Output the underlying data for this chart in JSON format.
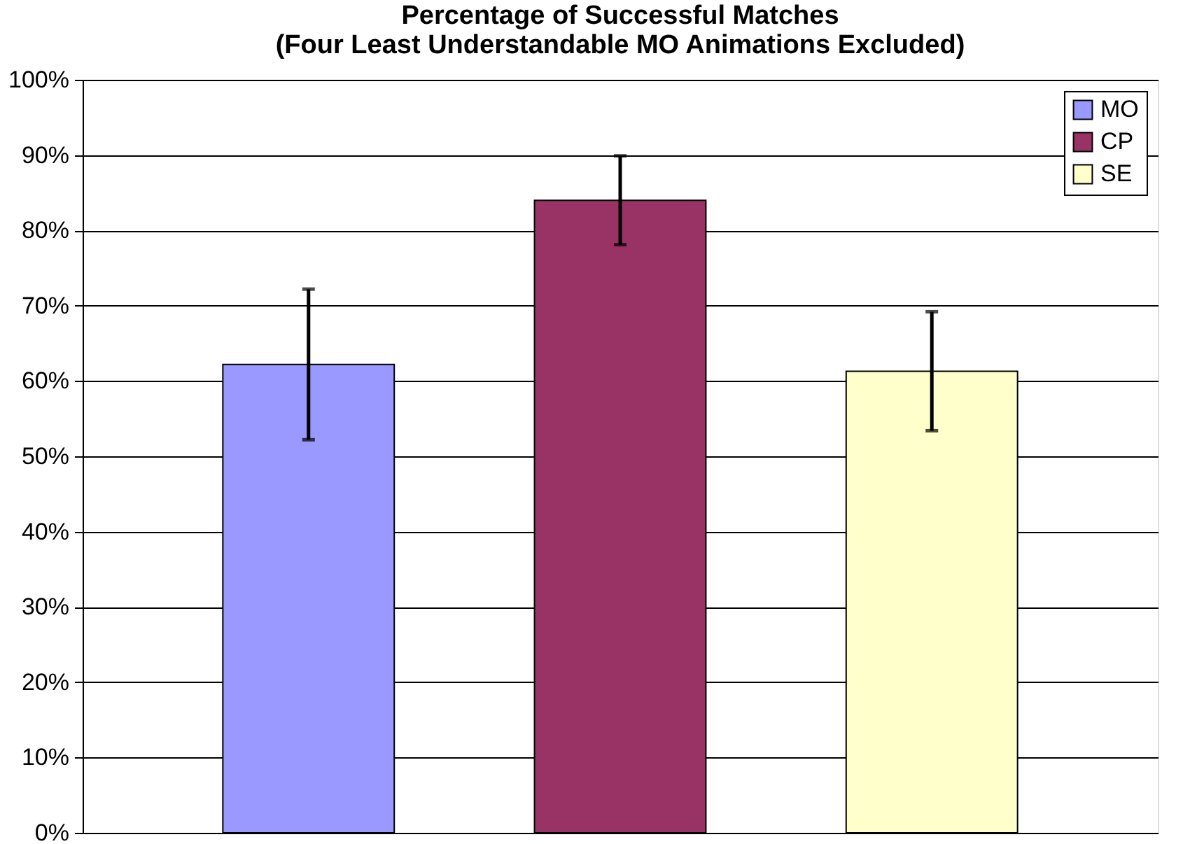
{
  "chart_data": {
    "type": "bar",
    "title": "Percentage of Successful Matches",
    "subtitle": "(Four Least Understandable MO Animations Excluded)",
    "categories": [
      null
    ],
    "series": [
      {
        "name": "MO",
        "color": "#9999ff",
        "values": [
          62.2
        ],
        "errors": [
          10.0
        ]
      },
      {
        "name": "CP",
        "color": "#993366",
        "values": [
          84.0
        ],
        "errors": [
          5.9
        ]
      },
      {
        "name": "SE",
        "color": "#ffffcc",
        "values": [
          61.3
        ],
        "errors": [
          7.9
        ]
      }
    ],
    "ylim": [
      0,
      100
    ],
    "yticks": [
      {
        "value": 0,
        "label": "0%"
      },
      {
        "value": 10,
        "label": "10%"
      },
      {
        "value": 20,
        "label": "20%"
      },
      {
        "value": 30,
        "label": "30%"
      },
      {
        "value": 40,
        "label": "40%"
      },
      {
        "value": 50,
        "label": "50%"
      },
      {
        "value": 60,
        "label": "60%"
      },
      {
        "value": 70,
        "label": "70%"
      },
      {
        "value": 80,
        "label": "80%"
      },
      {
        "value": 90,
        "label": "90%"
      },
      {
        "value": 100,
        "label": "100%"
      }
    ],
    "grid": "y",
    "legend": "top right"
  }
}
